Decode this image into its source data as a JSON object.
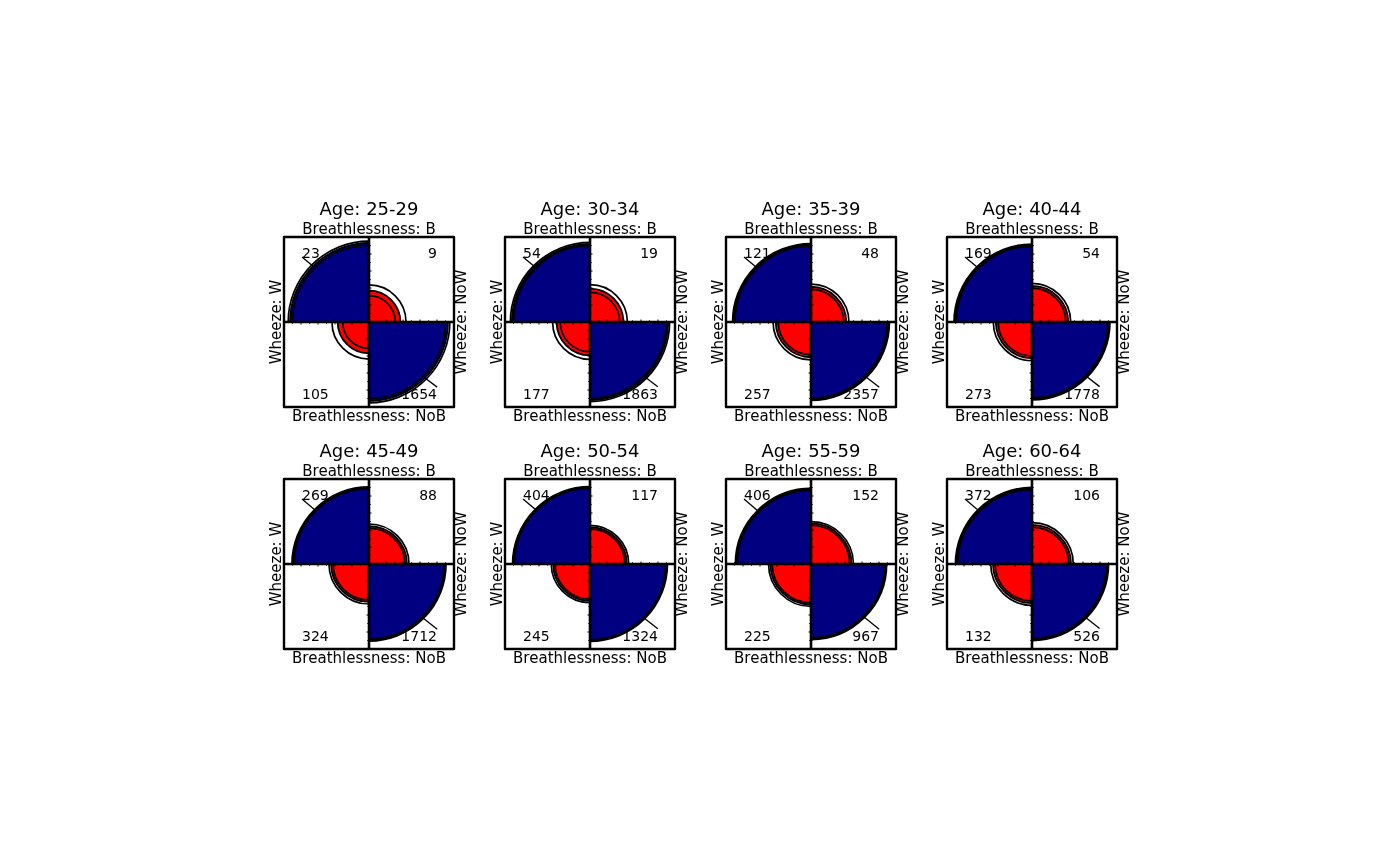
{
  "chart_data": [
    {
      "type": "other",
      "title": "Age: 25-29",
      "categories": [
        "Wheeze: W",
        "Wheeze: NoW"
      ],
      "series": [
        {
          "name": "Breathlessness: B",
          "values": [
            23,
            9
          ],
          "colors": [
            "#000080",
            "#ff0000"
          ]
        },
        {
          "name": "Breathlessness: NoB",
          "values": [
            105,
            1654
          ],
          "colors": [
            "#ff0000",
            "#000080"
          ]
        }
      ],
      "data_labels": true
    },
    {
      "type": "other",
      "title": "Age: 30-34",
      "categories": [
        "Wheeze: W",
        "Wheeze: NoW"
      ],
      "series": [
        {
          "name": "Breathlessness: B",
          "values": [
            54,
            19
          ],
          "colors": [
            "#000080",
            "#ff0000"
          ]
        },
        {
          "name": "Breathlessness: NoB",
          "values": [
            177,
            1863
          ],
          "colors": [
            "#ff0000",
            "#000080"
          ]
        }
      ],
      "data_labels": true
    },
    {
      "type": "other",
      "title": "Age: 35-39",
      "categories": [
        "Wheeze: W",
        "Wheeze: NoW"
      ],
      "series": [
        {
          "name": "Breathlessness: B",
          "values": [
            121,
            48
          ],
          "colors": [
            "#000080",
            "#ff0000"
          ]
        },
        {
          "name": "Breathlessness: NoB",
          "values": [
            257,
            2357
          ],
          "colors": [
            "#ff0000",
            "#000080"
          ]
        }
      ],
      "data_labels": true
    },
    {
      "type": "other",
      "title": "Age: 40-44",
      "categories": [
        "Wheeze: W",
        "Wheeze: NoW"
      ],
      "series": [
        {
          "name": "Breathlessness: B",
          "values": [
            169,
            54
          ],
          "colors": [
            "#000080",
            "#ff0000"
          ]
        },
        {
          "name": "Breathlessness: NoB",
          "values": [
            273,
            1778
          ],
          "colors": [
            "#ff0000",
            "#000080"
          ]
        }
      ],
      "data_labels": true
    },
    {
      "type": "other",
      "title": "Age: 45-49",
      "categories": [
        "Wheeze: W",
        "Wheeze: NoW"
      ],
      "series": [
        {
          "name": "Breathlessness: B",
          "values": [
            269,
            88
          ],
          "colors": [
            "#000080",
            "#ff0000"
          ]
        },
        {
          "name": "Breathlessness: NoB",
          "values": [
            324,
            1712
          ],
          "colors": [
            "#ff0000",
            "#000080"
          ]
        }
      ],
      "data_labels": true
    },
    {
      "type": "other",
      "title": "Age: 50-54",
      "categories": [
        "Wheeze: W",
        "Wheeze: NoW"
      ],
      "series": [
        {
          "name": "Breathlessness: B",
          "values": [
            404,
            117
          ],
          "colors": [
            "#000080",
            "#ff0000"
          ]
        },
        {
          "name": "Breathlessness: NoB",
          "values": [
            245,
            1324
          ],
          "colors": [
            "#ff0000",
            "#000080"
          ]
        }
      ],
      "data_labels": true
    },
    {
      "type": "other",
      "title": "Age: 55-59",
      "categories": [
        "Wheeze: W",
        "Wheeze: NoW"
      ],
      "series": [
        {
          "name": "Breathlessness: B",
          "values": [
            406,
            152
          ],
          "colors": [
            "#000080",
            "#ff0000"
          ]
        },
        {
          "name": "Breathlessness: NoB",
          "values": [
            225,
            967
          ],
          "colors": [
            "#ff0000",
            "#000080"
          ]
        }
      ],
      "data_labels": true
    },
    {
      "type": "other",
      "title": "Age: 60-64",
      "categories": [
        "Wheeze: W",
        "Wheeze: NoW"
      ],
      "series": [
        {
          "name": "Breathlessness: B",
          "values": [
            372,
            106
          ],
          "colors": [
            "#000080",
            "#ff0000"
          ]
        },
        {
          "name": "Breathlessness: NoB",
          "values": [
            132,
            526
          ],
          "colors": [
            "#ff0000",
            "#000080"
          ]
        }
      ],
      "data_labels": true
    }
  ]
}
